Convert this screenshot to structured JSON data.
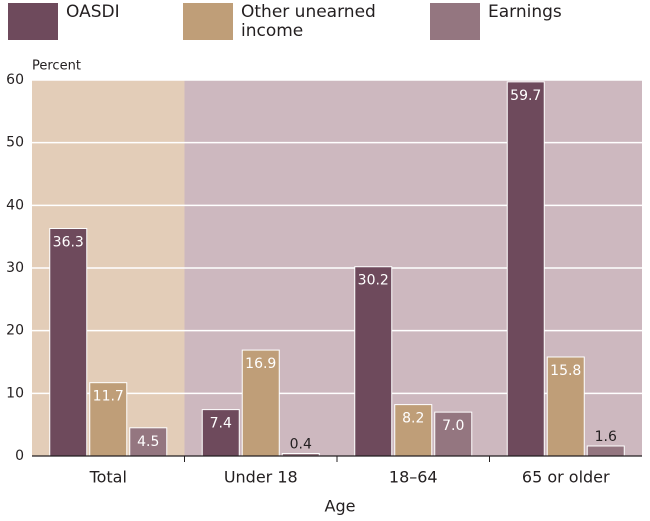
{
  "chart_data": {
    "type": "bar",
    "categories": [
      "Total",
      "Under 18",
      "18–64",
      "65 or older"
    ],
    "series": [
      {
        "name": "OASDI",
        "color": "#6e4a5c",
        "values": [
          36.3,
          7.4,
          30.2,
          59.7
        ],
        "value_labels": [
          "36.3",
          "7.4",
          "30.2",
          "59.7"
        ]
      },
      {
        "name": "Other unearned income",
        "color": "#bf9e78",
        "values": [
          11.7,
          16.9,
          8.2,
          15.8
        ],
        "value_labels": [
          "11.7",
          "16.9",
          "8.2",
          "15.8"
        ]
      },
      {
        "name": "Earnings",
        "color": "#947680",
        "values": [
          4.5,
          0.4,
          7.0,
          1.6
        ],
        "value_labels": [
          "4.5",
          "0.4",
          "7.0",
          "1.6"
        ]
      }
    ],
    "y_label": "Percent",
    "x_label": "Age",
    "ylim": [
      0,
      60
    ],
    "yticks": [
      0,
      10,
      20,
      30,
      40,
      50,
      60
    ],
    "grid": true,
    "legend": "top"
  }
}
